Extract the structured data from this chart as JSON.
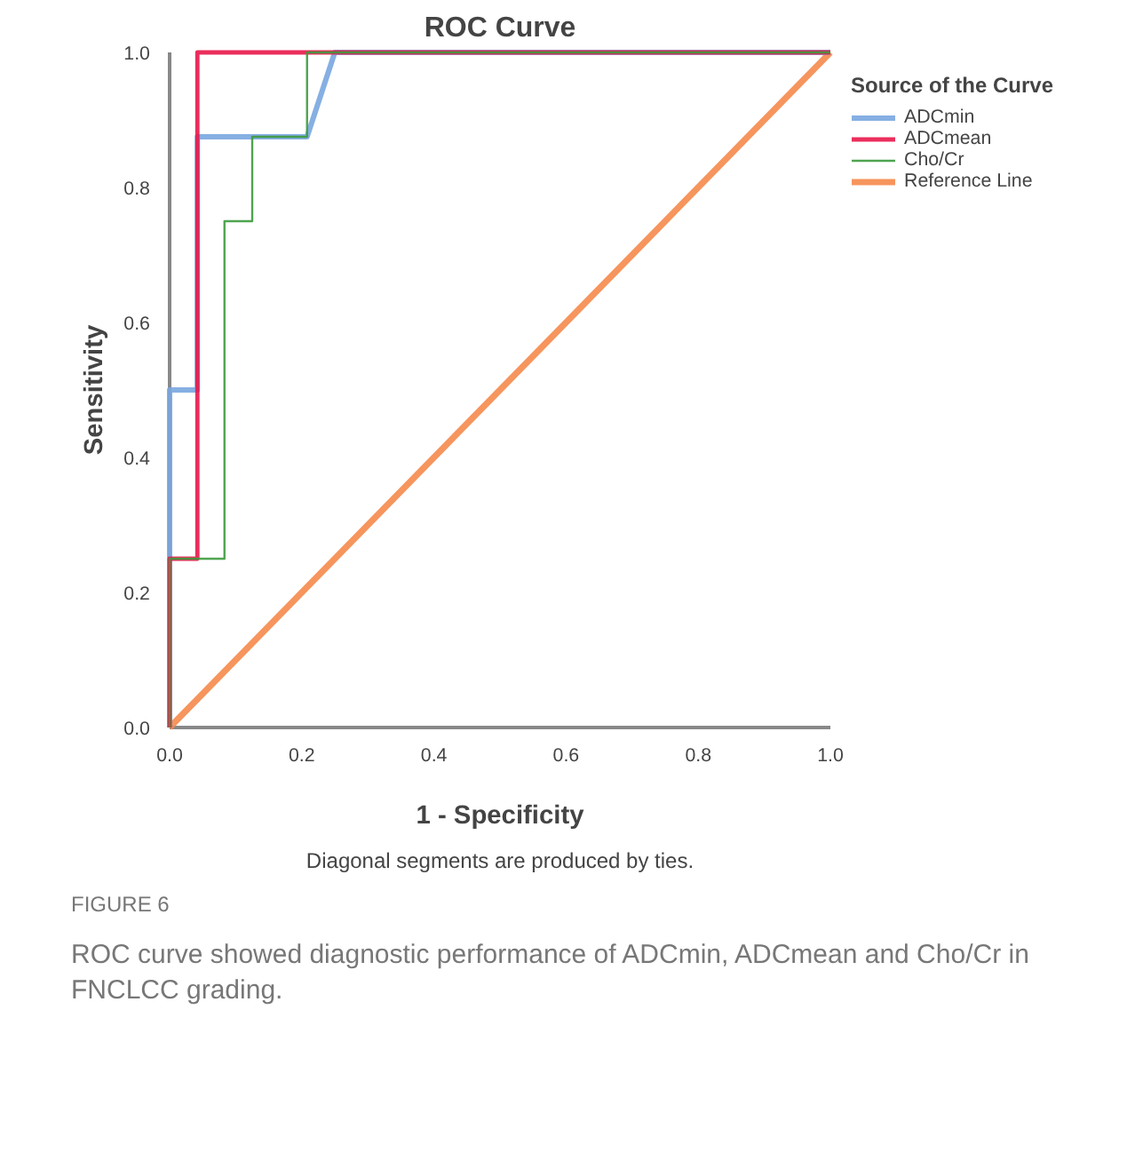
{
  "chart_data": {
    "type": "line",
    "title": "ROC Curve",
    "xlabel": "1 - Specificity",
    "ylabel": "Sensitivity",
    "legend_title": "Source of the Curve",
    "annotations": [
      "Diagonal segments are produced by ties.",
      "FIGURE 6",
      "ROC curve showed diagnostic performance of ADCmin, ADCmean and Cho/Cr in FNCLCC grading."
    ],
    "xlim": [
      0,
      1
    ],
    "ylim": [
      0,
      1
    ],
    "xticks": [
      {
        "value": 0,
        "label": "0.0"
      },
      0.2,
      0.4,
      0.6,
      0.8,
      {
        "value": 1,
        "label": "1.0"
      }
    ],
    "yticks": [
      {
        "value": 0,
        "label": "0.0"
      },
      0.2,
      0.4,
      0.6,
      0.8,
      {
        "value": 1,
        "label": "1.0"
      }
    ],
    "grid": false,
    "legend": "right",
    "marker": "none",
    "line_style": "solid",
    "series": [
      {
        "name": "Reference Line",
        "color": "#f58a4b",
        "x": [
          0,
          1
        ],
        "values": [
          0,
          1
        ]
      },
      {
        "name": "ADCmin",
        "color": "#79a6e0",
        "x": [
          0,
          0,
          0,
          0.042,
          0.042,
          0.208,
          0.25,
          1
        ],
        "values": [
          0,
          0.25,
          0.5,
          0.5,
          0.875,
          0.875,
          1,
          1
        ]
      },
      {
        "name": "ADCmean",
        "color": "#e8174a",
        "x": [
          0,
          0,
          0.042,
          0.042,
          1
        ],
        "values": [
          0,
          0.25,
          0.25,
          1,
          1
        ]
      },
      {
        "name": "Cho/Cr",
        "color": "#3c9a3c",
        "x": [
          0,
          0,
          0.083,
          0.083,
          0.125,
          0.125,
          0.208,
          0.208,
          1
        ],
        "values": [
          0,
          0.25,
          0.25,
          0.75,
          0.75,
          0.875,
          0.875,
          1,
          1
        ]
      }
    ]
  }
}
